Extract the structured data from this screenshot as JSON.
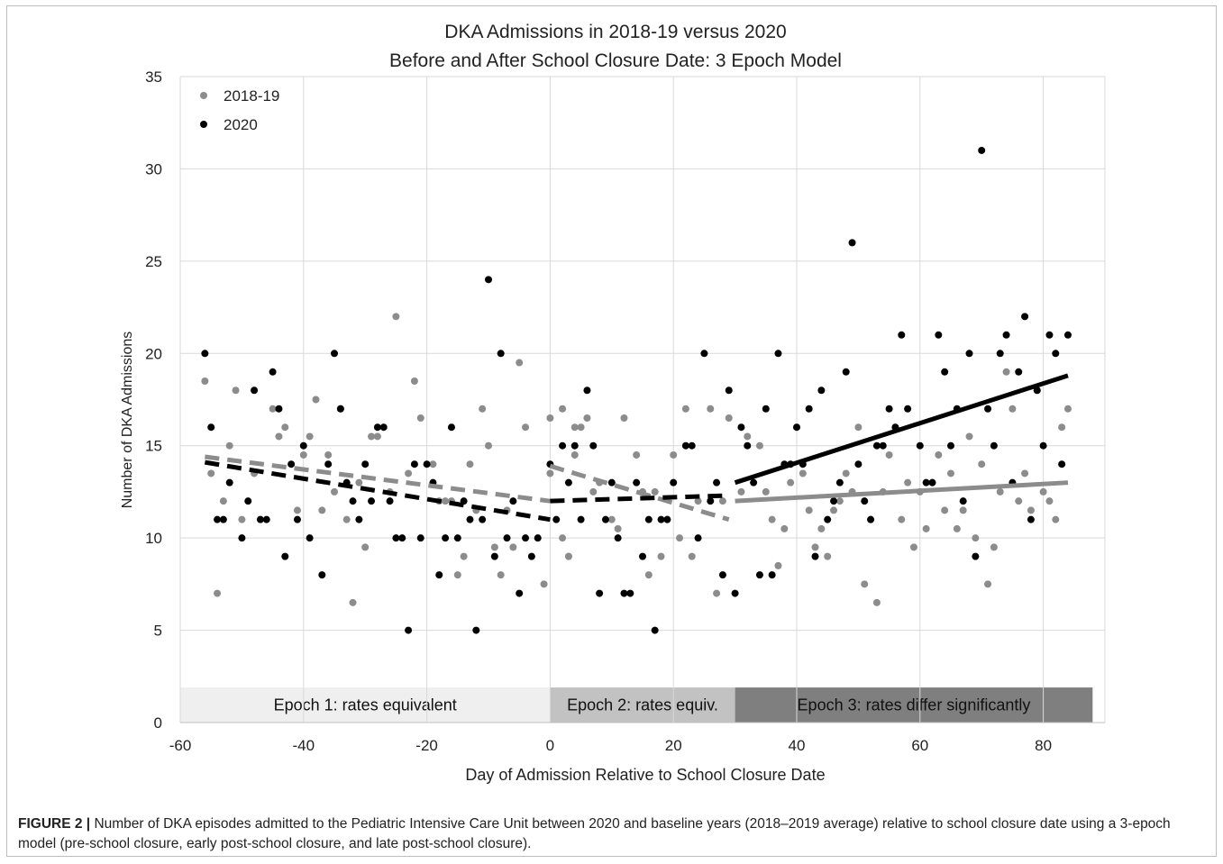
{
  "chart_data": {
    "type": "scatter",
    "title": [
      "DKA Admissions in 2018-19 versus 2020",
      "Before and After School Closure Date: 3 Epoch Model"
    ],
    "xlabel": "Day of Admission Relative to School Closure Date",
    "ylabel": "Number of DKA Admissions",
    "xlim": [
      -60,
      90
    ],
    "ylim": [
      0,
      35
    ],
    "xticks": [
      -60,
      -40,
      -20,
      0,
      20,
      40,
      60,
      80
    ],
    "yticks": [
      0,
      5,
      10,
      15,
      20,
      25,
      30,
      35
    ],
    "grid": "vertical and horizontal",
    "legend_position": "top-left",
    "series": [
      {
        "name": "2018-19",
        "color": "#8c8c8c",
        "points": [
          [
            -56,
            18.5
          ],
          [
            -55,
            13.5
          ],
          [
            -54,
            7
          ],
          [
            -53,
            12
          ],
          [
            -52,
            15
          ],
          [
            -51,
            18
          ],
          [
            -50,
            11
          ],
          [
            -48,
            13.5
          ],
          [
            -45,
            17
          ],
          [
            -44,
            15.5
          ],
          [
            -43,
            16
          ],
          [
            -41,
            11.5
          ],
          [
            -40,
            14.5
          ],
          [
            -39,
            15.5
          ],
          [
            -38,
            17.5
          ],
          [
            -37,
            11.5
          ],
          [
            -36,
            14.5
          ],
          [
            -35,
            12.5
          ],
          [
            -34,
            17
          ],
          [
            -33,
            11
          ],
          [
            -32,
            6.5
          ],
          [
            -31,
            13
          ],
          [
            -30,
            9.5
          ],
          [
            -29,
            15.5
          ],
          [
            -28,
            15.5
          ],
          [
            -26,
            12.5
          ],
          [
            -25,
            22
          ],
          [
            -23,
            13.5
          ],
          [
            -22,
            18.5
          ],
          [
            -21,
            16.5
          ],
          [
            -19,
            14
          ],
          [
            -18,
            12
          ],
          [
            -17,
            12
          ],
          [
            -16,
            12
          ],
          [
            -15,
            8
          ],
          [
            -14,
            9
          ],
          [
            -13,
            14
          ],
          [
            -12,
            11.5
          ],
          [
            -11,
            17
          ],
          [
            -10,
            15
          ],
          [
            -9,
            9.5
          ],
          [
            -8,
            8
          ],
          [
            -7,
            11.5
          ],
          [
            -6,
            9.5
          ],
          [
            -5,
            19.5
          ],
          [
            -4,
            16
          ],
          [
            -2,
            10
          ],
          [
            -1,
            7.5
          ],
          [
            0,
            16.5
          ],
          [
            2,
            10
          ],
          [
            3,
            9
          ],
          [
            4,
            16
          ],
          [
            0,
            13.5
          ],
          [
            2,
            17
          ],
          [
            3,
            9
          ],
          [
            4,
            14.5
          ],
          [
            5,
            16
          ],
          [
            6,
            16.5
          ],
          [
            7,
            12.5
          ],
          [
            8,
            13
          ],
          [
            10,
            11
          ],
          [
            11,
            10.5
          ],
          [
            12,
            16.5
          ],
          [
            14,
            14.5
          ],
          [
            15,
            12.5
          ],
          [
            16,
            8
          ],
          [
            17,
            12.5
          ],
          [
            18,
            9
          ],
          [
            19,
            11
          ],
          [
            20,
            14.5
          ],
          [
            21,
            10
          ],
          [
            22,
            17
          ],
          [
            23,
            9
          ],
          [
            24,
            12
          ],
          [
            26,
            17
          ],
          [
            27,
            7
          ],
          [
            28,
            12
          ],
          [
            29,
            16.5
          ],
          [
            31,
            12.5
          ],
          [
            32,
            15.5
          ],
          [
            34,
            15
          ],
          [
            35,
            12.5
          ],
          [
            36,
            11
          ],
          [
            37,
            8.5
          ],
          [
            38,
            10.5
          ],
          [
            39,
            13
          ],
          [
            40,
            16
          ],
          [
            41,
            13.5
          ],
          [
            42,
            11.5
          ],
          [
            43,
            9.5
          ],
          [
            44,
            10.5
          ],
          [
            45,
            9
          ],
          [
            46,
            11.5
          ],
          [
            47,
            12
          ],
          [
            48,
            13.5
          ],
          [
            49,
            12.5
          ],
          [
            50,
            16
          ],
          [
            51,
            7.5
          ],
          [
            52,
            11
          ],
          [
            53,
            6.5
          ],
          [
            54,
            12.5
          ],
          [
            55,
            14.5
          ],
          [
            56,
            16
          ],
          [
            57,
            11
          ],
          [
            58,
            13
          ],
          [
            59,
            9.5
          ],
          [
            60,
            12.5
          ],
          [
            61,
            10.5
          ],
          [
            62,
            13
          ],
          [
            63,
            14.5
          ],
          [
            64,
            11.5
          ],
          [
            65,
            13.5
          ],
          [
            66,
            10.5
          ],
          [
            67,
            11.5
          ],
          [
            68,
            15.5
          ],
          [
            69,
            10
          ],
          [
            70,
            14
          ],
          [
            71,
            7.5
          ],
          [
            72,
            9.5
          ],
          [
            73,
            12.5
          ],
          [
            74,
            19
          ],
          [
            75,
            17
          ],
          [
            76,
            12
          ],
          [
            77,
            13.5
          ],
          [
            78,
            11.5
          ],
          [
            79,
            18
          ],
          [
            80,
            12.5
          ],
          [
            81,
            12
          ],
          [
            82,
            11
          ],
          [
            83,
            16
          ],
          [
            84,
            17
          ]
        ]
      },
      {
        "name": "2020",
        "color": "#000000",
        "points": [
          [
            -56,
            20
          ],
          [
            -55,
            16
          ],
          [
            -54,
            11
          ],
          [
            -53,
            11
          ],
          [
            -52,
            13
          ],
          [
            -50,
            10
          ],
          [
            -49,
            12
          ],
          [
            -48,
            18
          ],
          [
            -47,
            11
          ],
          [
            -46,
            11
          ],
          [
            -45,
            19
          ],
          [
            -44,
            17
          ],
          [
            -43,
            9
          ],
          [
            -42,
            14
          ],
          [
            -41,
            11
          ],
          [
            -40,
            15
          ],
          [
            -39,
            10
          ],
          [
            -37,
            8
          ],
          [
            -36,
            14
          ],
          [
            -35,
            20
          ],
          [
            -34,
            17
          ],
          [
            -33,
            13
          ],
          [
            -32,
            12
          ],
          [
            -31,
            11
          ],
          [
            -30,
            14
          ],
          [
            -29,
            12
          ],
          [
            -28,
            16
          ],
          [
            -27,
            16
          ],
          [
            -26,
            12
          ],
          [
            -25,
            10
          ],
          [
            -24,
            10
          ],
          [
            -23,
            5
          ],
          [
            -22,
            14
          ],
          [
            -21,
            10
          ],
          [
            -20,
            14
          ],
          [
            -19,
            13
          ],
          [
            -18,
            8
          ],
          [
            -17,
            10
          ],
          [
            -16,
            16
          ],
          [
            -15,
            10
          ],
          [
            -14,
            12
          ],
          [
            -13,
            11
          ],
          [
            -12,
            5
          ],
          [
            -11,
            11
          ],
          [
            -10,
            24
          ],
          [
            -9,
            9
          ],
          [
            -8,
            20
          ],
          [
            -7,
            10
          ],
          [
            -6,
            12
          ],
          [
            -5,
            7
          ],
          [
            -4,
            10
          ],
          [
            -3,
            9
          ],
          [
            -2,
            10
          ],
          [
            0,
            14
          ],
          [
            1,
            11
          ],
          [
            2,
            15
          ],
          [
            3,
            13
          ],
          [
            4,
            15
          ],
          [
            5,
            11
          ],
          [
            6,
            18
          ],
          [
            7,
            15
          ],
          [
            8,
            7
          ],
          [
            9,
            11
          ],
          [
            10,
            13
          ],
          [
            11,
            10
          ],
          [
            12,
            7
          ],
          [
            13,
            7
          ],
          [
            14,
            13
          ],
          [
            15,
            9
          ],
          [
            16,
            11
          ],
          [
            17,
            5
          ],
          [
            18,
            11
          ],
          [
            19,
            11
          ],
          [
            20,
            13
          ],
          [
            22,
            15
          ],
          [
            23,
            15
          ],
          [
            24,
            10
          ],
          [
            25,
            20
          ],
          [
            26,
            12
          ],
          [
            27,
            13
          ],
          [
            28,
            8
          ],
          [
            29,
            18
          ],
          [
            30,
            7
          ],
          [
            31,
            16
          ],
          [
            32,
            15
          ],
          [
            33,
            13
          ],
          [
            34,
            8
          ],
          [
            35,
            17
          ],
          [
            36,
            8
          ],
          [
            37,
            20
          ],
          [
            38,
            14
          ],
          [
            39,
            14
          ],
          [
            40,
            16
          ],
          [
            41,
            14
          ],
          [
            42,
            17
          ],
          [
            43,
            9
          ],
          [
            44,
            18
          ],
          [
            45,
            11
          ],
          [
            46,
            12
          ],
          [
            47,
            13
          ],
          [
            48,
            19
          ],
          [
            49,
            26
          ],
          [
            50,
            14
          ],
          [
            51,
            12
          ],
          [
            52,
            11
          ],
          [
            53,
            15
          ],
          [
            54,
            15
          ],
          [
            55,
            17
          ],
          [
            56,
            16
          ],
          [
            57,
            21
          ],
          [
            58,
            17
          ],
          [
            60,
            15
          ],
          [
            61,
            13
          ],
          [
            62,
            13
          ],
          [
            63,
            21
          ],
          [
            64,
            19
          ],
          [
            65,
            15
          ],
          [
            66,
            17
          ],
          [
            67,
            12
          ],
          [
            68,
            20
          ],
          [
            69,
            9
          ],
          [
            70,
            31
          ],
          [
            71,
            17
          ],
          [
            72,
            15
          ],
          [
            73,
            20
          ],
          [
            74,
            21
          ],
          [
            75,
            13
          ],
          [
            76,
            19
          ],
          [
            77,
            22
          ],
          [
            78,
            11
          ],
          [
            79,
            18
          ],
          [
            80,
            15
          ],
          [
            81,
            21
          ],
          [
            82,
            20
          ],
          [
            83,
            14
          ],
          [
            84,
            21
          ]
        ]
      }
    ],
    "trendlines": [
      {
        "series": "2018-19",
        "style": "dashed",
        "from": [
          -56,
          14.4
        ],
        "to": [
          0,
          12.0
        ]
      },
      {
        "series": "2020",
        "style": "dashed",
        "from": [
          -56,
          14.1
        ],
        "to": [
          0,
          11.0
        ]
      },
      {
        "series": "2018-19",
        "style": "dashed",
        "from": [
          0,
          13.9
        ],
        "to": [
          29,
          11.0
        ]
      },
      {
        "series": "2020",
        "style": "dashed",
        "from": [
          0,
          12.0
        ],
        "to": [
          29,
          12.3
        ]
      },
      {
        "series": "2018-19",
        "style": "solid",
        "from": [
          30,
          12.0
        ],
        "to": [
          84,
          13.0
        ]
      },
      {
        "series": "2020",
        "style": "solid",
        "from": [
          30,
          13.0
        ],
        "to": [
          84,
          18.8
        ]
      }
    ],
    "epochs": [
      {
        "label": "Epoch 1: rates equivalent",
        "x0": -60,
        "x1": 0,
        "shade": "#efefef"
      },
      {
        "label": "Epoch 2: rates equiv.",
        "x0": 0,
        "x1": 30,
        "shade": "#c2c2c2"
      },
      {
        "label": "Epoch 3: rates differ significantly",
        "x0": 30,
        "x1": 88,
        "shade": "#7f7f7f"
      }
    ],
    "epoch_band_ylim": [
      0,
      1.9
    ]
  },
  "caption": {
    "label": "FIGURE 2 |",
    "text": " Number of DKA episodes admitted to the Pediatric Intensive Care Unit between 2020 and baseline years (2018–2019 average) relative to school closure date using a 3-epoch model (pre-school closure, early post-school closure, and late post-school closure)."
  }
}
